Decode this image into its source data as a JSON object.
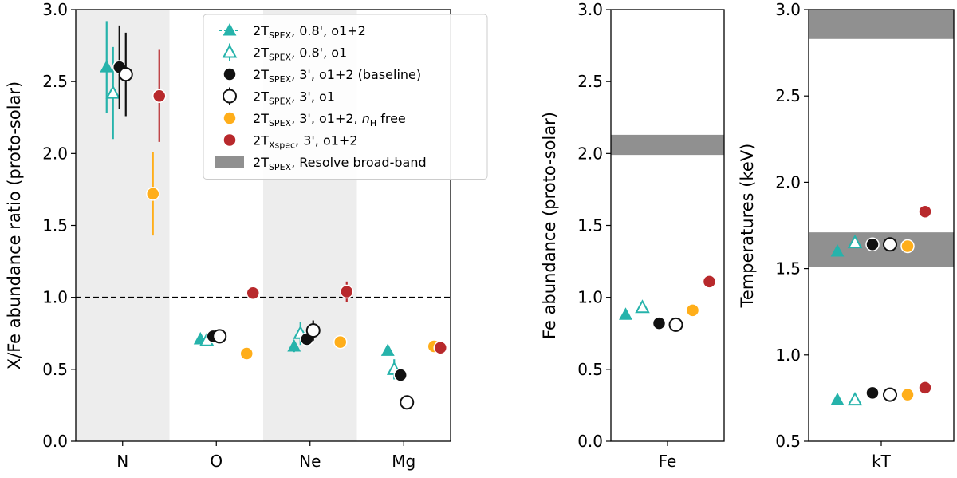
{
  "colors": {
    "teal": "#26b3ab",
    "black": "#111111",
    "orange": "#ffae1a",
    "red": "#b8292c",
    "band": "#909090",
    "shade": "#ededed"
  },
  "chart_data": [
    {
      "type": "scatter",
      "ylabel": "X/Fe abundance ratio (proto-solar)",
      "ylim": [
        0,
        3
      ],
      "yticks": [
        "0.0",
        "0.5",
        "1.0",
        "1.5",
        "2.0",
        "2.5",
        "3.0"
      ],
      "categories": [
        "N",
        "O",
        "Ne",
        "Mg"
      ],
      "shaded_categories": [
        "N",
        "Ne"
      ],
      "reference_line": 1.0,
      "legend_position": "top-right",
      "legend": [
        {
          "pre": "2T",
          "sub": "SPEX",
          "post": ", 0.8', o1+2"
        },
        {
          "pre": "2T",
          "sub": "SPEX",
          "post": ", 0.8', o1"
        },
        {
          "pre": "2T",
          "sub": "SPEX",
          "post": ", 3', o1+2 (baseline)"
        },
        {
          "pre": "2T",
          "sub": "SPEX",
          "post": ", 3', o1"
        },
        {
          "pre": "2T",
          "sub": "SPEX",
          "post": ", 3', o1+2, ",
          "italic": "n",
          "italic_sub": "H",
          "tail": " free"
        },
        {
          "pre": "2T",
          "sub": "Xspec",
          "post": ", 3', o1+2"
        },
        {
          "pre": "2T",
          "sub": "SPEX",
          "post": ", Resolve broad-band"
        }
      ],
      "series": [
        {
          "marker": "triangle-filled",
          "values": [
            2.6,
            0.71,
            0.66,
            0.63
          ],
          "errors": [
            0.32,
            0.02,
            0.04,
            0.03
          ]
        },
        {
          "marker": "triangle-open",
          "values": [
            2.42,
            0.7,
            0.75,
            0.5
          ],
          "errors": [
            0.32,
            0.03,
            0.08,
            0.07
          ]
        },
        {
          "marker": "circle-filled",
          "values": [
            2.6,
            0.73,
            0.71,
            0.46
          ],
          "errors": [
            0.29,
            0.02,
            0.02,
            0.02
          ]
        },
        {
          "marker": "circle-open",
          "values": [
            2.55,
            0.73,
            0.77,
            0.27
          ],
          "errors": [
            0.29,
            0.03,
            0.07,
            0.04
          ]
        },
        {
          "marker": "circle-orange",
          "values": [
            1.72,
            0.61,
            0.69,
            0.66
          ],
          "errors": [
            0.29,
            0.01,
            0.01,
            0.01
          ]
        },
        {
          "marker": "circle-red",
          "values": [
            2.4,
            1.03,
            1.04,
            0.65
          ],
          "errors": [
            0.32,
            0.01,
            0.07,
            0.01
          ]
        }
      ]
    },
    {
      "type": "scatter",
      "ylabel": "Fe abundance (proto-solar)",
      "ylim": [
        0,
        3
      ],
      "yticks": [
        "0.0",
        "0.5",
        "1.0",
        "1.5",
        "2.0",
        "2.5",
        "3.0"
      ],
      "categories": [
        "Fe"
      ],
      "band": [
        1.99,
        2.13
      ],
      "series": [
        {
          "marker": "triangle-filled",
          "values": [
            0.88
          ],
          "errors": [
            0.01
          ]
        },
        {
          "marker": "triangle-open",
          "values": [
            0.93
          ],
          "errors": [
            0.03
          ]
        },
        {
          "marker": "circle-filled",
          "values": [
            0.82
          ],
          "errors": [
            0.01
          ]
        },
        {
          "marker": "circle-open",
          "values": [
            0.81
          ],
          "errors": [
            0.01
          ]
        },
        {
          "marker": "circle-orange",
          "values": [
            0.91
          ],
          "errors": [
            0.01
          ]
        },
        {
          "marker": "circle-red",
          "values": [
            1.11
          ],
          "errors": [
            0.01
          ]
        }
      ]
    },
    {
      "type": "scatter",
      "ylabel": "Temperatures (keV)",
      "ylim": [
        0.5,
        3
      ],
      "yticks": [
        "0.5",
        "1.0",
        "1.5",
        "2.0",
        "2.5",
        "3.0"
      ],
      "categories": [
        "kT"
      ],
      "bands": [
        [
          2.83,
          3.0
        ],
        [
          1.51,
          1.71
        ]
      ],
      "series": [
        {
          "marker": "triangle-filled",
          "values": [
            1.6,
            0.74
          ],
          "errors": [
            0.01,
            0.01
          ]
        },
        {
          "marker": "triangle-open",
          "values": [
            1.65,
            0.74
          ],
          "errors": [
            0.01,
            0.01
          ]
        },
        {
          "marker": "circle-filled",
          "values": [
            1.64,
            0.78
          ],
          "errors": [
            0.01,
            0.01
          ]
        },
        {
          "marker": "circle-open",
          "values": [
            1.64,
            0.77
          ],
          "errors": [
            0.01,
            0.01
          ]
        },
        {
          "marker": "circle-orange",
          "values": [
            1.63,
            0.77
          ],
          "errors": [
            0.01,
            0.01
          ]
        },
        {
          "marker": "circle-red",
          "values": [
            1.83,
            0.81
          ],
          "errors": [
            0.01,
            0.01
          ]
        }
      ]
    }
  ]
}
